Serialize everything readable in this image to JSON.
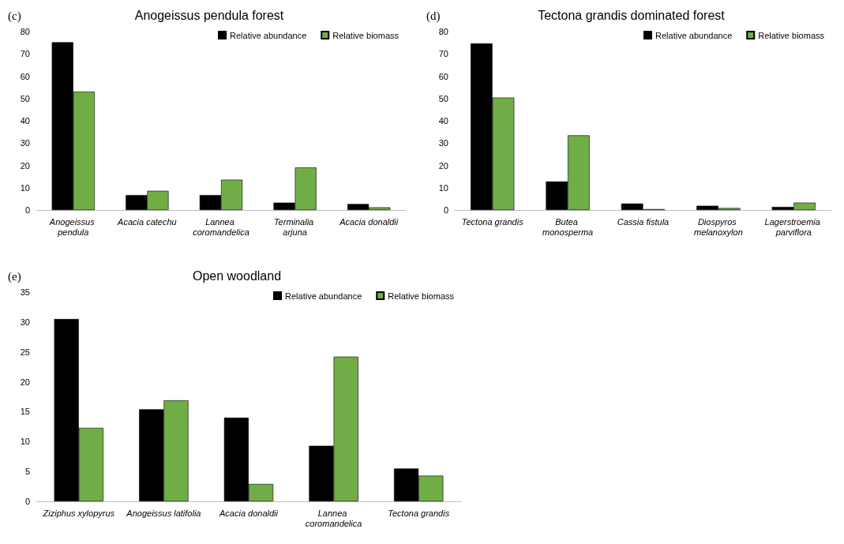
{
  "chart_data": [
    {
      "type": "bar",
      "title": "Anogeissus pendula forest",
      "annotations": [
        "(c)"
      ],
      "categories": [
        "Anogeissus pendula",
        "Acacia catechu",
        "Lannea coromandelica",
        "Terminalia arjuna",
        "Acacia donaldii"
      ],
      "series": [
        {
          "name": "Relative abundance",
          "color": "#000000",
          "values": [
            75.2,
            6.7,
            6.7,
            3.3,
            2.7
          ]
        },
        {
          "name": "Relative biomass",
          "color": "#70ad47",
          "values": [
            53.1,
            8.6,
            13.6,
            19.1,
            1.2
          ]
        }
      ],
      "ylim": [
        0,
        80
      ],
      "yticks": [
        0,
        10,
        20,
        30,
        40,
        50,
        60,
        70,
        80
      ],
      "grid": false,
      "legend": "top right"
    },
    {
      "type": "bar",
      "title": "Tectona grandis dominated forest",
      "annotations": [
        "(d)"
      ],
      "categories": [
        "Tectona grandis",
        "Butea monosperma",
        "Cassia fistula",
        "Diospyros melanoxylon",
        "Lagerstroemia parviflora"
      ],
      "series": [
        {
          "name": "Relative abundance",
          "color": "#000000",
          "values": [
            74.7,
            12.8,
            2.9,
            1.9,
            1.4
          ]
        },
        {
          "name": "Relative biomass",
          "color": "#70ad47",
          "values": [
            50.4,
            33.5,
            0.4,
            0.9,
            3.3
          ]
        }
      ],
      "ylim": [
        0,
        80
      ],
      "yticks": [
        0,
        10,
        20,
        30,
        40,
        50,
        60,
        70,
        80
      ],
      "grid": false,
      "legend": "top right"
    },
    {
      "type": "bar",
      "title": "Open woodland",
      "annotations": [
        "(e)"
      ],
      "categories": [
        "Ziziphus xylopyrus",
        "Anogeissus latifolia",
        "Acacia donaldii",
        "Lannea coromandelica",
        "Tectona grandis"
      ],
      "series": [
        {
          "name": "Relative abundance",
          "color": "#000000",
          "values": [
            30.5,
            15.4,
            14.0,
            9.3,
            5.5
          ]
        },
        {
          "name": "Relative biomass",
          "color": "#70ad47",
          "values": [
            12.3,
            16.9,
            2.9,
            24.2,
            4.3
          ]
        }
      ],
      "ylim": [
        0,
        35
      ],
      "yticks": [
        0,
        5,
        10,
        15,
        20,
        25,
        30,
        35
      ],
      "grid": false,
      "legend": "top right"
    }
  ]
}
